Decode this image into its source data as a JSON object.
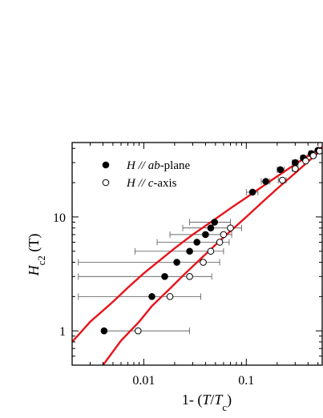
{
  "chart_data": {
    "type": "scatter",
    "xlabel": "1- (T/Tc)",
    "xlabel_parts": {
      "prefix": "1- (",
      "var": "T",
      "slash": "/",
      "var2": "T",
      "sub": "c",
      "suffix": ")"
    },
    "ylabel_parts": {
      "var": "H",
      "sub": "c2",
      "unit": " (T)"
    },
    "x_scale": "log",
    "y_scale": "log",
    "xlim": [
      0.002,
      0.55
    ],
    "ylim": [
      0.5,
      45
    ],
    "x_ticks": [
      {
        "value": 0.01,
        "label": "0.01"
      },
      {
        "value": 0.1,
        "label": "0.1"
      }
    ],
    "y_ticks": [
      {
        "value": 1,
        "label": "1"
      },
      {
        "value": 10,
        "label": "10"
      }
    ],
    "legend_position": "top-left",
    "series": [
      {
        "name_parts": {
          "var": "H",
          "mid": " // ",
          "em": "ab",
          "rest": "-plane"
        },
        "marker": "filled-circle",
        "points": [
          {
            "x": 0.0041,
            "y": 1.0,
            "xerr": 0.0
          },
          {
            "x": 0.012,
            "y": 2.0,
            "xerr": 0.0
          },
          {
            "x": 0.016,
            "y": 3.0,
            "xerr": 0.0
          },
          {
            "x": 0.021,
            "y": 4.0,
            "xerr": 0.0
          },
          {
            "x": 0.028,
            "y": 5.0,
            "xerr": 0.0
          },
          {
            "x": 0.033,
            "y": 6.0,
            "xerr": 0.0
          },
          {
            "x": 0.04,
            "y": 7.0,
            "xerr": 0.0
          },
          {
            "x": 0.045,
            "y": 8.0,
            "xerr": 0.0
          },
          {
            "x": 0.049,
            "y": 9.0,
            "xerr": 0.0
          },
          {
            "x": 0.115,
            "y": 16.5,
            "xerr": 0.0
          },
          {
            "x": 0.155,
            "y": 20.5,
            "xerr": 0.0
          },
          {
            "x": 0.215,
            "y": 26.0,
            "xerr": 0.0
          },
          {
            "x": 0.3,
            "y": 30.0,
            "xerr": 0.0
          },
          {
            "x": 0.36,
            "y": 33.0,
            "xerr": 0.0
          },
          {
            "x": 0.43,
            "y": 36.0,
            "xerr": 0.0
          },
          {
            "x": 0.5,
            "y": 38.5,
            "xerr": 0.0
          }
        ]
      },
      {
        "name_parts": {
          "var": "H",
          "mid": " // ",
          "em": "c",
          "rest": "-axis"
        },
        "marker": "open-circle",
        "points": [
          {
            "x": 0.0088,
            "y": 1.0,
            "xerr": 0.0
          },
          {
            "x": 0.018,
            "y": 2.0,
            "xerr": 0.0
          },
          {
            "x": 0.028,
            "y": 3.0,
            "xerr": 0.0
          },
          {
            "x": 0.038,
            "y": 4.0,
            "xerr": 0.0
          },
          {
            "x": 0.045,
            "y": 5.0,
            "xerr": 0.0
          },
          {
            "x": 0.055,
            "y": 6.0,
            "xerr": 0.0
          },
          {
            "x": 0.06,
            "y": 7.0,
            "xerr": 0.0
          },
          {
            "x": 0.07,
            "y": 8.0,
            "xerr": 0.0
          },
          {
            "x": 0.225,
            "y": 21.0,
            "xerr": 0.0
          },
          {
            "x": 0.3,
            "y": 26.5,
            "xerr": 0.0
          },
          {
            "x": 0.38,
            "y": 31.0,
            "xerr": 0.0
          },
          {
            "x": 0.45,
            "y": 34.5,
            "xerr": 0.0
          },
          {
            "x": 0.52,
            "y": 38.0,
            "xerr": 0.0
          }
        ]
      }
    ],
    "error_bars": [
      {
        "y": 1.0,
        "x_low": 0.0041,
        "x_high": 0.028
      },
      {
        "y": 2.0,
        "x_low": 0.0023,
        "x_high": 0.036
      },
      {
        "y": 3.0,
        "x_low": 0.0023,
        "x_high": 0.046
      },
      {
        "y": 4.0,
        "x_low": 0.0023,
        "x_high": 0.055
      },
      {
        "y": 5.0,
        "x_low": 0.0082,
        "x_high": 0.06
      },
      {
        "y": 6.0,
        "x_low": 0.0135,
        "x_high": 0.068
      },
      {
        "y": 7.0,
        "x_low": 0.018,
        "x_high": 0.072
      },
      {
        "y": 8.0,
        "x_low": 0.024,
        "x_high": 0.09
      },
      {
        "y": 9.0,
        "x_low": 0.028,
        "x_high": 0.07
      },
      {
        "y": 16.5,
        "x_low": 0.1,
        "x_high": 0.13
      },
      {
        "y": 20.5,
        "x_low": 0.14,
        "x_high": 0.17
      },
      {
        "y": 21.0,
        "x_low": 0.205,
        "x_high": 0.245
      },
      {
        "y": 26.0,
        "x_low": 0.2,
        "x_high": 0.235
      },
      {
        "y": 26.5,
        "x_low": 0.28,
        "x_high": 0.32
      },
      {
        "y": 30.0,
        "x_low": 0.28,
        "x_high": 0.32
      },
      {
        "y": 33.0,
        "x_low": 0.34,
        "x_high": 0.39
      },
      {
        "y": 36.0,
        "x_low": 0.41,
        "x_high": 0.46
      }
    ],
    "fit_curves": {
      "color": "#e8141b",
      "curves": [
        [
          [
            0.002,
            0.8
          ],
          [
            0.003,
            1.2
          ],
          [
            0.005,
            1.8
          ],
          [
            0.007,
            2.4
          ],
          [
            0.01,
            3.2
          ],
          [
            0.015,
            4.3
          ],
          [
            0.02,
            5.3
          ],
          [
            0.03,
            7.0
          ],
          [
            0.05,
            9.6
          ],
          [
            0.07,
            11.9
          ],
          [
            0.1,
            14.8
          ],
          [
            0.15,
            19.0
          ],
          [
            0.2,
            22.7
          ],
          [
            0.3,
            29.0
          ],
          [
            0.4,
            34.3
          ],
          [
            0.5,
            39.0
          ],
          [
            0.55,
            41.0
          ]
        ],
        [
          [
            0.004,
            0.5
          ],
          [
            0.006,
            0.82
          ],
          [
            0.009,
            1.2
          ],
          [
            0.012,
            1.65
          ],
          [
            0.018,
            2.35
          ],
          [
            0.025,
            3.15
          ],
          [
            0.035,
            4.2
          ],
          [
            0.05,
            5.7
          ],
          [
            0.07,
            7.5
          ],
          [
            0.1,
            10.0
          ],
          [
            0.15,
            14.0
          ],
          [
            0.2,
            17.7
          ],
          [
            0.3,
            24.3
          ],
          [
            0.4,
            30.6
          ],
          [
            0.5,
            36.4
          ],
          [
            0.55,
            39.0
          ]
        ]
      ]
    },
    "colors": {
      "axis": "#000000",
      "fit": "#e8141b",
      "marker": "#000000"
    }
  }
}
